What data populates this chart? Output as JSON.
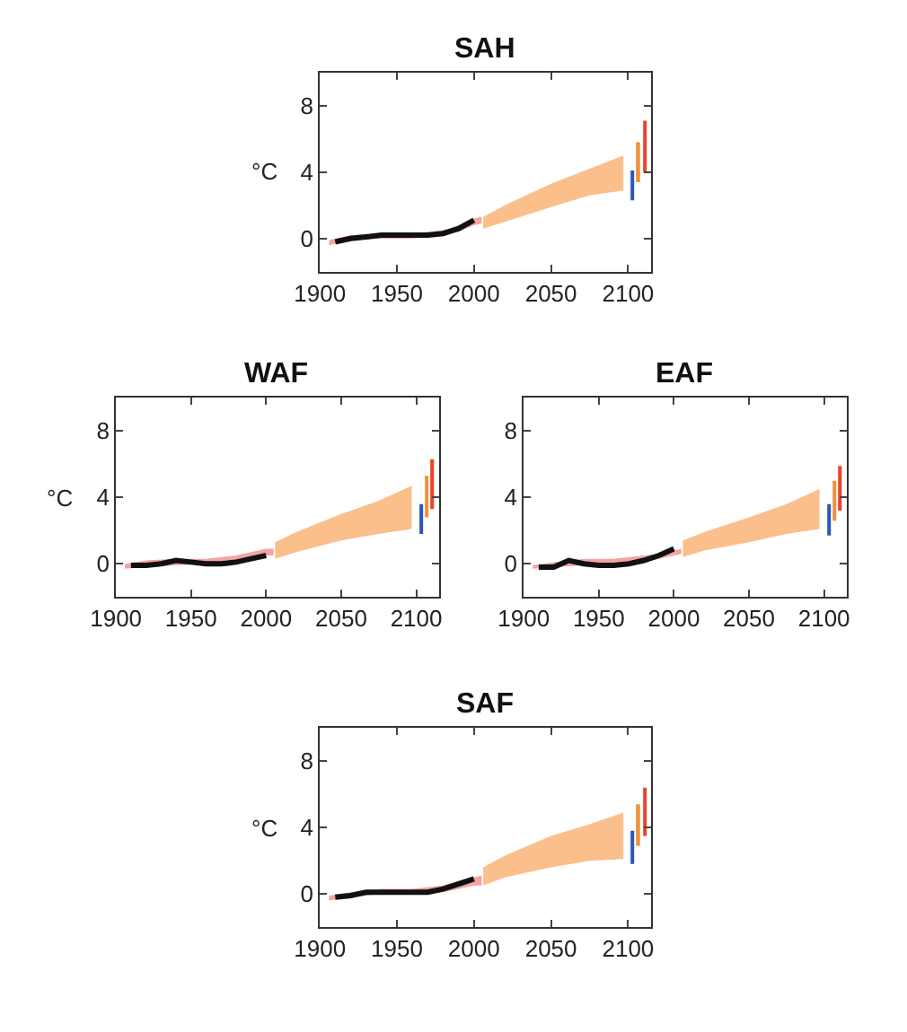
{
  "chart_data": [
    {
      "type": "line",
      "title": "SAH",
      "ylabel": "°C",
      "xlim": [
        1900,
        2115
      ],
      "xticks": [
        1900,
        1950,
        2000,
        2050,
        2100
      ],
      "ylim": [
        -2,
        10
      ],
      "yticks": [
        0,
        4,
        8
      ],
      "series": [
        {
          "type": "area",
          "color": "#f4a3a3",
          "x": [
            1906,
            1920,
            1940,
            1960,
            1980,
            1990,
            2000,
            2005
          ],
          "values": [
            null,
            null,
            null,
            null,
            null,
            null,
            null,
            null
          ],
          "lower": [
            -0.4,
            -0.1,
            0.0,
            0.0,
            0.2,
            0.4,
            0.8,
            0.9
          ],
          "upper": [
            -0.1,
            0.2,
            0.3,
            0.3,
            0.5,
            0.7,
            1.2,
            1.3
          ]
        },
        {
          "color": "#111111",
          "x": [
            1910,
            1920,
            1930,
            1940,
            1950,
            1960,
            1970,
            1980,
            1990,
            2000
          ],
          "values": [
            -0.2,
            0.0,
            0.1,
            0.2,
            0.2,
            0.2,
            0.2,
            0.3,
            0.6,
            1.1
          ]
        },
        {
          "type": "area",
          "color": "#fbbf8c",
          "x": [
            2006,
            2020,
            2050,
            2075,
            2097
          ],
          "values": [
            null,
            null,
            null,
            null,
            null
          ],
          "lower": [
            0.6,
            1.0,
            1.9,
            2.6,
            2.9
          ],
          "upper": [
            1.3,
            2.0,
            3.3,
            4.2,
            5.0
          ]
        },
        {
          "type": "bar",
          "x": [
            2103,
            2107,
            2111
          ],
          "colors": [
            "#2b55b8",
            "#f0903e",
            "#e8452c"
          ],
          "base": [
            2.3,
            3.4,
            4.0
          ],
          "values": [
            1.8,
            2.4,
            3.1
          ]
        }
      ]
    },
    {
      "type": "line",
      "title": "WAF",
      "ylabel": "°C",
      "xlim": [
        1900,
        2115
      ],
      "xticks": [
        1900,
        1950,
        2000,
        2050,
        2100
      ],
      "ylim": [
        -2,
        10
      ],
      "yticks": [
        0,
        4,
        8
      ],
      "series": [
        {
          "type": "area",
          "color": "#f4a3a3",
          "x": [
            1906,
            1920,
            1940,
            1960,
            1980,
            1990,
            2000,
            2005
          ],
          "values": [
            null,
            null,
            null,
            null,
            null,
            null,
            null,
            null
          ],
          "lower": [
            -0.3,
            -0.2,
            -0.1,
            0.0,
            0.1,
            0.3,
            0.5,
            0.5
          ],
          "upper": [
            0.0,
            0.2,
            0.3,
            0.3,
            0.5,
            0.7,
            0.9,
            0.9
          ]
        },
        {
          "color": "#111111",
          "x": [
            1910,
            1920,
            1930,
            1940,
            1950,
            1960,
            1970,
            1980,
            1990,
            2000
          ],
          "values": [
            -0.1,
            -0.1,
            0.0,
            0.2,
            0.1,
            0.0,
            0.0,
            0.1,
            0.3,
            0.5
          ]
        },
        {
          "type": "area",
          "color": "#fbbf8c",
          "x": [
            2006,
            2020,
            2050,
            2075,
            2097
          ],
          "values": [
            null,
            null,
            null,
            null,
            null
          ],
          "lower": [
            0.3,
            0.7,
            1.4,
            1.8,
            2.1
          ],
          "upper": [
            1.3,
            1.9,
            3.0,
            3.8,
            4.7
          ]
        },
        {
          "type": "bar",
          "x": [
            2103,
            2107,
            2111
          ],
          "colors": [
            "#2b55b8",
            "#f0903e",
            "#e8452c"
          ],
          "base": [
            1.8,
            2.8,
            3.3
          ],
          "values": [
            1.8,
            2.5,
            3.0
          ]
        }
      ]
    },
    {
      "type": "line",
      "title": "EAF",
      "xlim": [
        1900,
        2115
      ],
      "xticks": [
        1900,
        1950,
        2000,
        2050,
        2100
      ],
      "ylim": [
        -2,
        10
      ],
      "yticks": [
        0,
        4,
        8
      ],
      "series": [
        {
          "type": "area",
          "color": "#f4a3a3",
          "x": [
            1906,
            1920,
            1940,
            1960,
            1980,
            1990,
            2000,
            2005
          ],
          "values": [
            null,
            null,
            null,
            null,
            null,
            null,
            null,
            null
          ],
          "lower": [
            -0.3,
            -0.2,
            -0.1,
            0.0,
            0.1,
            0.3,
            0.5,
            0.6
          ],
          "upper": [
            -0.1,
            0.1,
            0.3,
            0.3,
            0.5,
            0.6,
            0.8,
            0.9
          ]
        },
        {
          "color": "#111111",
          "x": [
            1910,
            1920,
            1930,
            1940,
            1950,
            1960,
            1970,
            1980,
            1990,
            2000
          ],
          "values": [
            -0.2,
            -0.2,
            0.2,
            0.0,
            -0.1,
            -0.1,
            0.0,
            0.2,
            0.5,
            0.9
          ]
        },
        {
          "type": "area",
          "color": "#fbbf8c",
          "x": [
            2006,
            2020,
            2050,
            2075,
            2097
          ],
          "values": [
            null,
            null,
            null,
            null,
            null
          ],
          "lower": [
            0.4,
            0.8,
            1.3,
            1.8,
            2.1
          ],
          "upper": [
            1.4,
            1.9,
            2.8,
            3.6,
            4.5
          ]
        },
        {
          "type": "bar",
          "x": [
            2103,
            2107,
            2111
          ],
          "colors": [
            "#2b55b8",
            "#f0903e",
            "#e8452c"
          ],
          "base": [
            1.7,
            2.6,
            3.2
          ],
          "values": [
            1.9,
            2.4,
            2.7
          ]
        }
      ]
    },
    {
      "type": "line",
      "title": "SAF",
      "ylabel": "°C",
      "xlim": [
        1900,
        2115
      ],
      "xticks": [
        1900,
        1950,
        2000,
        2050,
        2100
      ],
      "ylim": [
        -2,
        10
      ],
      "yticks": [
        0,
        4,
        8
      ],
      "series": [
        {
          "type": "area",
          "color": "#f4a3a3",
          "x": [
            1906,
            1920,
            1940,
            1960,
            1980,
            1990,
            2000,
            2005
          ],
          "values": [
            null,
            null,
            null,
            null,
            null,
            null,
            null,
            null
          ],
          "lower": [
            -0.4,
            -0.2,
            0.0,
            0.0,
            0.1,
            0.3,
            0.5,
            0.5
          ],
          "upper": [
            -0.1,
            0.1,
            0.3,
            0.3,
            0.5,
            0.8,
            1.0,
            1.1
          ]
        },
        {
          "color": "#111111",
          "x": [
            1910,
            1920,
            1930,
            1940,
            1950,
            1960,
            1970,
            1980,
            1990,
            2000
          ],
          "values": [
            -0.2,
            -0.1,
            0.1,
            0.1,
            0.1,
            0.1,
            0.1,
            0.3,
            0.6,
            0.9
          ]
        },
        {
          "type": "area",
          "color": "#fbbf8c",
          "x": [
            2006,
            2020,
            2050,
            2075,
            2097
          ],
          "values": [
            null,
            null,
            null,
            null,
            null
          ],
          "lower": [
            0.5,
            1.0,
            1.6,
            2.0,
            2.1
          ],
          "upper": [
            1.6,
            2.3,
            3.5,
            4.2,
            4.9
          ]
        },
        {
          "type": "bar",
          "x": [
            2103,
            2107,
            2111
          ],
          "colors": [
            "#2b55b8",
            "#f0903e",
            "#e8452c"
          ],
          "base": [
            1.8,
            2.9,
            3.5
          ],
          "values": [
            2.0,
            2.5,
            2.9
          ]
        }
      ]
    }
  ]
}
